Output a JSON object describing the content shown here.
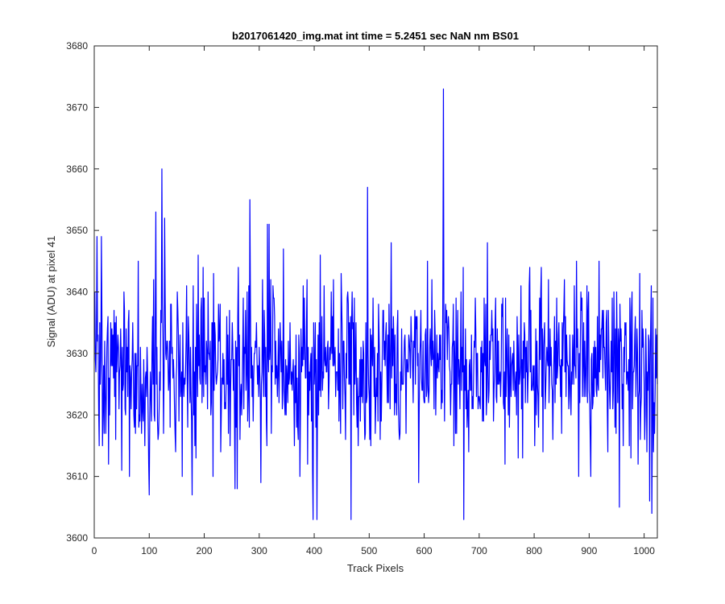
{
  "chart_data": {
    "type": "line",
    "title": "b2017061420_img.mat int time = 5.2451 sec  NaN nm BS01",
    "xlabel": "Track Pixels",
    "ylabel": "Signal (ADU) at pixel 41",
    "xlim": [
      0,
      1024
    ],
    "ylim": [
      3600,
      3680
    ],
    "xticks": [
      0,
      100,
      200,
      300,
      400,
      500,
      600,
      700,
      800,
      900,
      1000
    ],
    "yticks": [
      3600,
      3610,
      3620,
      3630,
      3640,
      3650,
      3660,
      3670,
      3680
    ],
    "grid": false,
    "line_color": "#0000ff",
    "series": [
      {
        "x_start": 1,
        "x_step": 1,
        "mean": 3628,
        "noise_sd": 7,
        "seed": 41,
        "count": 1024,
        "extremes": [
          {
            "x": 5,
            "y": 3649
          },
          {
            "x": 9,
            "y": 3615
          },
          {
            "x": 13,
            "y": 3649
          },
          {
            "x": 15,
            "y": 3615
          },
          {
            "x": 50,
            "y": 3611
          },
          {
            "x": 100,
            "y": 3607
          },
          {
            "x": 112,
            "y": 3653
          },
          {
            "x": 123,
            "y": 3660
          },
          {
            "x": 128,
            "y": 3652
          },
          {
            "x": 160,
            "y": 3610
          },
          {
            "x": 178,
            "y": 3607
          },
          {
            "x": 256,
            "y": 3608
          },
          {
            "x": 260,
            "y": 3608
          },
          {
            "x": 283,
            "y": 3655
          },
          {
            "x": 303,
            "y": 3609
          },
          {
            "x": 315,
            "y": 3651
          },
          {
            "x": 318,
            "y": 3651
          },
          {
            "x": 398,
            "y": 3603
          },
          {
            "x": 405,
            "y": 3603
          },
          {
            "x": 467,
            "y": 3603
          },
          {
            "x": 497,
            "y": 3657
          },
          {
            "x": 540,
            "y": 3648
          },
          {
            "x": 590,
            "y": 3609
          },
          {
            "x": 635,
            "y": 3673
          },
          {
            "x": 672,
            "y": 3603
          },
          {
            "x": 715,
            "y": 3648
          },
          {
            "x": 955,
            "y": 3605
          },
          {
            "x": 1010,
            "y": 3606
          },
          {
            "x": 1014,
            "y": 3604
          }
        ]
      }
    ]
  }
}
